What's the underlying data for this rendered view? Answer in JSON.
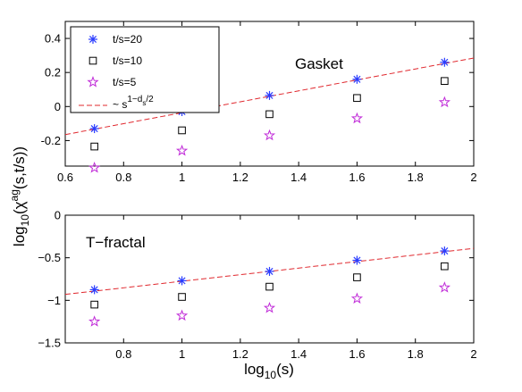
{
  "chart_data": [
    {
      "type": "scatter",
      "title": "Gasket",
      "xlabel": "",
      "ylabel": "",
      "xlim": [
        0.6,
        2
      ],
      "ylim": [
        -0.35,
        0.5
      ],
      "xticks": [
        0.6,
        0.8,
        1,
        1.2,
        1.4,
        1.6,
        1.8,
        2
      ],
      "xtick_labels": [
        "0.6",
        "0.8",
        "1",
        "1.2",
        "1.4",
        "1.6",
        "1.8",
        "2"
      ],
      "yticks": [
        -0.2,
        0,
        0.2,
        0.4
      ],
      "ytick_labels": [
        "-0.2",
        "0",
        "0.2",
        "0.4"
      ],
      "grid": false,
      "series": [
        {
          "name": "t/s=20",
          "marker": "asterisk",
          "color": "#2a3cff",
          "x": [
            0.7,
            1.0,
            1.3,
            1.6,
            1.9
          ],
          "y": [
            -0.13,
            -0.03,
            0.065,
            0.16,
            0.26
          ]
        },
        {
          "name": "t/s=10",
          "marker": "square",
          "color": "#000000",
          "x": [
            0.7,
            1.0,
            1.3,
            1.6,
            1.9
          ],
          "y": [
            -0.235,
            -0.14,
            -0.045,
            0.05,
            0.15
          ]
        },
        {
          "name": "t/s=5",
          "marker": "star",
          "color": "#c02ad8",
          "x": [
            0.7,
            1.0,
            1.3,
            1.6,
            1.9
          ],
          "y": [
            -0.36,
            -0.26,
            -0.17,
            -0.07,
            0.025
          ]
        }
      ],
      "fit_line": {
        "style": "dashed",
        "color": "#e0282e",
        "x": [
          0.6,
          2.0
        ],
        "y": [
          -0.165,
          0.285
        ]
      },
      "legend": {
        "placement": "top-left",
        "entries": [
          {
            "label": "t/s=20",
            "marker": "asterisk",
            "color": "#2a3cff"
          },
          {
            "label": "t/s=10",
            "marker": "square",
            "color": "#000000"
          },
          {
            "label": "t/s=5",
            "marker": "star",
            "color": "#c02ad8"
          }
        ],
        "fit_label": {
          "prefix": "~ s",
          "sup_a": "1−d",
          "sub": "s",
          "sup_b": "/2"
        }
      }
    },
    {
      "type": "scatter",
      "title": "T−fractal",
      "xlabel": "",
      "ylabel": "",
      "xlim": [
        0.6,
        2
      ],
      "ylim": [
        -1.5,
        0
      ],
      "xticks": [
        0.6,
        0.8,
        1,
        1.2,
        1.4,
        1.6,
        1.8,
        2
      ],
      "xtick_labels": [
        "",
        "0.8",
        "1",
        "1.2",
        "1.4",
        "1.6",
        "1.8",
        "2"
      ],
      "yticks": [
        -1.5,
        -1,
        -0.5,
        0
      ],
      "ytick_labels": [
        "−1.5",
        "−1",
        "−0.5",
        "0"
      ],
      "grid": false,
      "series": [
        {
          "name": "t/s=20",
          "marker": "asterisk",
          "color": "#2a3cff",
          "x": [
            0.7,
            1.0,
            1.3,
            1.6,
            1.9
          ],
          "y": [
            -0.875,
            -0.77,
            -0.66,
            -0.53,
            -0.42
          ]
        },
        {
          "name": "t/s=10",
          "marker": "square",
          "color": "#000000",
          "x": [
            0.7,
            1.0,
            1.3,
            1.6,
            1.9
          ],
          "y": [
            -1.05,
            -0.96,
            -0.84,
            -0.73,
            -0.6
          ]
        },
        {
          "name": "t/s=5",
          "marker": "star",
          "color": "#c02ad8",
          "x": [
            0.7,
            1.0,
            1.3,
            1.6,
            1.9
          ],
          "y": [
            -1.25,
            -1.18,
            -1.09,
            -0.98,
            -0.85
          ]
        }
      ],
      "fit_line": {
        "style": "dashed",
        "color": "#e0282e",
        "x": [
          0.6,
          2.0
        ],
        "y": [
          -0.93,
          -0.39
        ]
      }
    }
  ],
  "shared_labels": {
    "ylabel": {
      "base": "log",
      "base_sub": "10",
      "open": "(χ",
      "sup": "ag",
      "close": "(s,t/s))"
    },
    "xlabel": {
      "base": "log",
      "base_sub": "10",
      "rest": "(s)"
    }
  }
}
